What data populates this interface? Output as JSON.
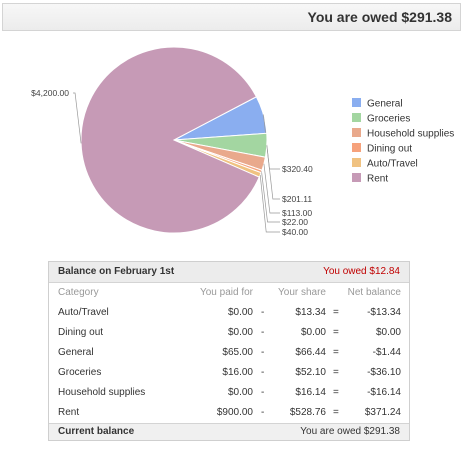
{
  "header": {
    "owed_text": "You are owed $291.38"
  },
  "chart_data": {
    "type": "pie",
    "slices": [
      {
        "name": "General",
        "value": 320.4,
        "label": "$320.40",
        "color": "#8aaef0"
      },
      {
        "name": "Groceries",
        "value": 201.11,
        "label": "$201.11",
        "color": "#a3d6a1"
      },
      {
        "name": "Household supplies",
        "value": 113.0,
        "label": "$113.00",
        "color": "#e9a98c"
      },
      {
        "name": "Dining out",
        "value": 22.0,
        "label": "$22.00",
        "color": "#f6a27c"
      },
      {
        "name": "Auto/Travel",
        "value": 40.0,
        "label": "$40.00",
        "color": "#f0c281"
      },
      {
        "name": "Rent",
        "value": 4200.0,
        "label": "$4,200.00",
        "color": "#c69ab6"
      }
    ],
    "legend": [
      "General",
      "Groceries",
      "Household supplies",
      "Dining out",
      "Auto/Travel",
      "Rent"
    ],
    "legend_placement": "right"
  },
  "balance": {
    "title": "Balance on February 1st",
    "owed_text": "You owed $12.84",
    "columns": {
      "category": "Category",
      "paid": "You paid for",
      "share": "Your share",
      "net": "Net balance"
    },
    "dash": "-",
    "eq": "=",
    "rows": [
      {
        "category": "Auto/Travel",
        "paid": "$0.00",
        "share": "$13.34",
        "net": "-$13.34"
      },
      {
        "category": "Dining out",
        "paid": "$0.00",
        "share": "$0.00",
        "net": "$0.00"
      },
      {
        "category": "General",
        "paid": "$65.00",
        "share": "$66.44",
        "net": "-$1.44"
      },
      {
        "category": "Groceries",
        "paid": "$16.00",
        "share": "$52.10",
        "net": "-$36.10"
      },
      {
        "category": "Household supplies",
        "paid": "$0.00",
        "share": "$16.14",
        "net": "-$16.14"
      },
      {
        "category": "Rent",
        "paid": "$900.00",
        "share": "$528.76",
        "net": "$371.24"
      }
    ],
    "current_label": "Current balance",
    "current_value": "You are owed $291.38"
  }
}
